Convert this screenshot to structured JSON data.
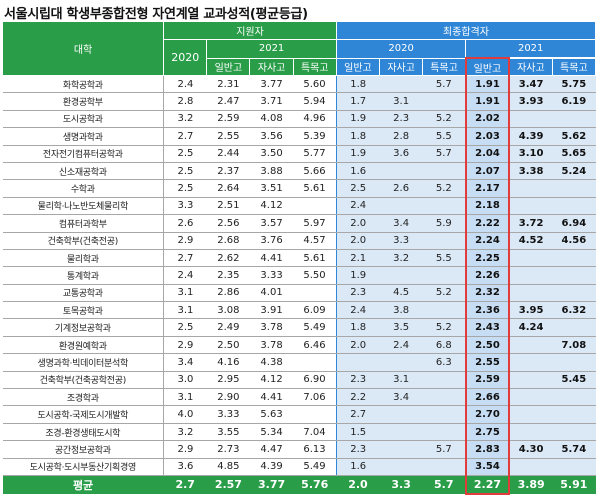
{
  "title": "서울시립대 학생부종합전형 자연계열 교과성적(평균등급)",
  "header": {
    "dept": "대학",
    "applicants": "지원자",
    "finalists": "최종합격자",
    "year2020": "2020",
    "year2021": "2021",
    "col_general": "일반고",
    "col_autonomous": "자사고",
    "col_special": "특목고"
  },
  "rows": [
    {
      "name": "화학공학과",
      "a20": "2.4",
      "a21g": "2.31",
      "a21a": "3.77",
      "a21s": "5.60",
      "f20g": "1.8",
      "f20a": "",
      "f20s": "5.7",
      "f21g": "1.91",
      "f21a": "3.47",
      "f21s": "5.75"
    },
    {
      "name": "환경공학부",
      "a20": "2.8",
      "a21g": "2.47",
      "a21a": "3.71",
      "a21s": "5.94",
      "f20g": "1.7",
      "f20a": "3.1",
      "f20s": "",
      "f21g": "1.91",
      "f21a": "3.93",
      "f21s": "6.19"
    },
    {
      "name": "도시공학과",
      "a20": "3.2",
      "a21g": "2.59",
      "a21a": "4.08",
      "a21s": "4.96",
      "f20g": "1.9",
      "f20a": "2.3",
      "f20s": "5.2",
      "f21g": "2.02",
      "f21a": "",
      "f21s": ""
    },
    {
      "name": "생명과학과",
      "a20": "2.7",
      "a21g": "2.55",
      "a21a": "3.56",
      "a21s": "5.39",
      "f20g": "1.8",
      "f20a": "2.8",
      "f20s": "5.5",
      "f21g": "2.03",
      "f21a": "4.39",
      "f21s": "5.62"
    },
    {
      "name": "전자전기컴퓨터공학과",
      "a20": "2.5",
      "a21g": "2.44",
      "a21a": "3.50",
      "a21s": "5.77",
      "f20g": "1.9",
      "f20a": "3.6",
      "f20s": "5.7",
      "f21g": "2.04",
      "f21a": "3.10",
      "f21s": "5.65"
    },
    {
      "name": "신소재공학과",
      "a20": "2.5",
      "a21g": "2.37",
      "a21a": "3.88",
      "a21s": "5.66",
      "f20g": "1.6",
      "f20a": "",
      "f20s": "",
      "f21g": "2.07",
      "f21a": "3.38",
      "f21s": "5.24"
    },
    {
      "name": "수학과",
      "a20": "2.5",
      "a21g": "2.64",
      "a21a": "3.51",
      "a21s": "5.61",
      "f20g": "2.5",
      "f20a": "2.6",
      "f20s": "5.2",
      "f21g": "2.17",
      "f21a": "",
      "f21s": ""
    },
    {
      "name": "물리학·나노반도체물리학",
      "a20": "3.3",
      "a21g": "2.51",
      "a21a": "4.12",
      "a21s": "",
      "f20g": "2.4",
      "f20a": "",
      "f20s": "",
      "f21g": "2.18",
      "f21a": "",
      "f21s": ""
    },
    {
      "name": "컴퓨터과학부",
      "a20": "2.6",
      "a21g": "2.56",
      "a21a": "3.57",
      "a21s": "5.97",
      "f20g": "2.0",
      "f20a": "3.4",
      "f20s": "5.9",
      "f21g": "2.22",
      "f21a": "3.72",
      "f21s": "6.94"
    },
    {
      "name": "건축학부(건축전공)",
      "a20": "2.9",
      "a21g": "2.68",
      "a21a": "3.76",
      "a21s": "4.57",
      "f20g": "2.0",
      "f20a": "3.3",
      "f20s": "",
      "f21g": "2.24",
      "f21a": "4.52",
      "f21s": "4.56"
    },
    {
      "name": "물리학과",
      "a20": "2.7",
      "a21g": "2.62",
      "a21a": "4.41",
      "a21s": "5.61",
      "f20g": "2.1",
      "f20a": "3.2",
      "f20s": "5.5",
      "f21g": "2.25",
      "f21a": "",
      "f21s": ""
    },
    {
      "name": "통계학과",
      "a20": "2.4",
      "a21g": "2.35",
      "a21a": "3.33",
      "a21s": "5.50",
      "f20g": "1.9",
      "f20a": "",
      "f20s": "",
      "f21g": "2.26",
      "f21a": "",
      "f21s": ""
    },
    {
      "name": "교통공학과",
      "a20": "3.1",
      "a21g": "2.86",
      "a21a": "4.01",
      "a21s": "",
      "f20g": "2.3",
      "f20a": "4.5",
      "f20s": "5.2",
      "f21g": "2.32",
      "f21a": "",
      "f21s": ""
    },
    {
      "name": "토목공학과",
      "a20": "3.1",
      "a21g": "3.08",
      "a21a": "3.91",
      "a21s": "6.09",
      "f20g": "2.4",
      "f20a": "3.8",
      "f20s": "",
      "f21g": "2.36",
      "f21a": "3.95",
      "f21s": "6.32"
    },
    {
      "name": "기계정보공학과",
      "a20": "2.5",
      "a21g": "2.49",
      "a21a": "3.78",
      "a21s": "5.49",
      "f20g": "1.8",
      "f20a": "3.5",
      "f20s": "5.2",
      "f21g": "2.43",
      "f21a": "4.24",
      "f21s": ""
    },
    {
      "name": "환경원예학과",
      "a20": "2.9",
      "a21g": "2.50",
      "a21a": "3.78",
      "a21s": "6.46",
      "f20g": "2.0",
      "f20a": "2.4",
      "f20s": "6.8",
      "f21g": "2.50",
      "f21a": "",
      "f21s": "7.08"
    },
    {
      "name": "생명과학·빅데이터분석학",
      "a20": "3.4",
      "a21g": "4.16",
      "a21a": "4.38",
      "a21s": "",
      "f20g": "",
      "f20a": "",
      "f20s": "6.3",
      "f21g": "2.55",
      "f21a": "",
      "f21s": ""
    },
    {
      "name": "건축학부(건축공학전공)",
      "a20": "3.0",
      "a21g": "2.95",
      "a21a": "4.12",
      "a21s": "6.90",
      "f20g": "2.3",
      "f20a": "3.1",
      "f20s": "",
      "f21g": "2.59",
      "f21a": "",
      "f21s": "5.45"
    },
    {
      "name": "조경학과",
      "a20": "3.1",
      "a21g": "2.90",
      "a21a": "4.41",
      "a21s": "7.06",
      "f20g": "2.2",
      "f20a": "3.4",
      "f20s": "",
      "f21g": "2.66",
      "f21a": "",
      "f21s": ""
    },
    {
      "name": "도시공학-국제도시개발학",
      "a20": "4.0",
      "a21g": "3.33",
      "a21a": "5.63",
      "a21s": "",
      "f20g": "2.7",
      "f20a": "",
      "f20s": "",
      "f21g": "2.70",
      "f21a": "",
      "f21s": ""
    },
    {
      "name": "조경-환경생태도시학",
      "a20": "3.2",
      "a21g": "3.55",
      "a21a": "5.34",
      "a21s": "7.04",
      "f20g": "1.5",
      "f20a": "",
      "f20s": "",
      "f21g": "2.75",
      "f21a": "",
      "f21s": ""
    },
    {
      "name": "공간정보공학과",
      "a20": "2.9",
      "a21g": "2.73",
      "a21a": "4.47",
      "a21s": "6.13",
      "f20g": "2.3",
      "f20a": "",
      "f20s": "5.7",
      "f21g": "2.83",
      "f21a": "4.30",
      "f21s": "5.74"
    },
    {
      "name": "도시공학·도시부동산기획경영",
      "a20": "3.6",
      "a21g": "4.85",
      "a21a": "4.39",
      "a21s": "5.49",
      "f20g": "1.6",
      "f20a": "",
      "f20s": "",
      "f21g": "3.54",
      "f21a": "",
      "f21s": ""
    }
  ],
  "average": {
    "label": "평균",
    "a20": "2.7",
    "a21g": "2.57",
    "a21a": "3.77",
    "a21s": "5.76",
    "f20g": "2.0",
    "f20a": "3.3",
    "f20s": "5.7",
    "f21g": "2.27",
    "f21a": "3.89",
    "f21s": "5.91"
  },
  "colors": {
    "green": "#2a9d49",
    "blue": "#2f85d6",
    "light_blue": "#dbe9f7",
    "highlight_blue": "#c7ddf3",
    "highlight_border": "#e23b3b"
  }
}
